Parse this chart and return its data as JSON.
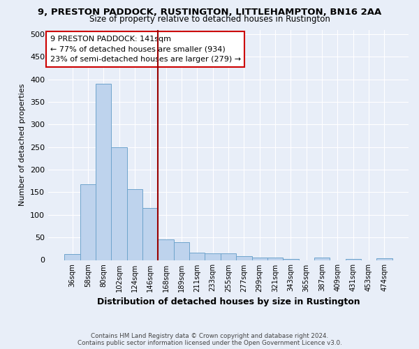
{
  "title1": "9, PRESTON PADDOCK, RUSTINGTON, LITTLEHAMPTON, BN16 2AA",
  "title2": "Size of property relative to detached houses in Rustington",
  "xlabel": "Distribution of detached houses by size in Rustington",
  "ylabel": "Number of detached properties",
  "categories": [
    "36sqm",
    "58sqm",
    "80sqm",
    "102sqm",
    "124sqm",
    "146sqm",
    "168sqm",
    "189sqm",
    "211sqm",
    "233sqm",
    "255sqm",
    "277sqm",
    "299sqm",
    "321sqm",
    "343sqm",
    "365sqm",
    "387sqm",
    "409sqm",
    "431sqm",
    "453sqm",
    "474sqm"
  ],
  "values": [
    13,
    167,
    390,
    250,
    157,
    115,
    45,
    40,
    17,
    15,
    15,
    9,
    6,
    5,
    3,
    0,
    6,
    0,
    3,
    0,
    4
  ],
  "bar_color": "#bed3ed",
  "bar_edge_color": "#6ea4cc",
  "background_color": "#e8eef8",
  "grid_color": "#ffffff",
  "vline_x": 5.5,
  "vline_color": "#990000",
  "annotation_text": "9 PRESTON PADDOCK: 141sqm\n← 77% of detached houses are smaller (934)\n23% of semi-detached houses are larger (279) →",
  "annotation_box_color": "#ffffff",
  "annotation_box_edge": "#cc0000",
  "footer_text": "Contains HM Land Registry data © Crown copyright and database right 2024.\nContains public sector information licensed under the Open Government Licence v3.0.",
  "ylim": [
    0,
    510
  ],
  "yticks": [
    0,
    50,
    100,
    150,
    200,
    250,
    300,
    350,
    400,
    450,
    500
  ],
  "title1_fontsize": 9.5,
  "title2_fontsize": 8.5
}
